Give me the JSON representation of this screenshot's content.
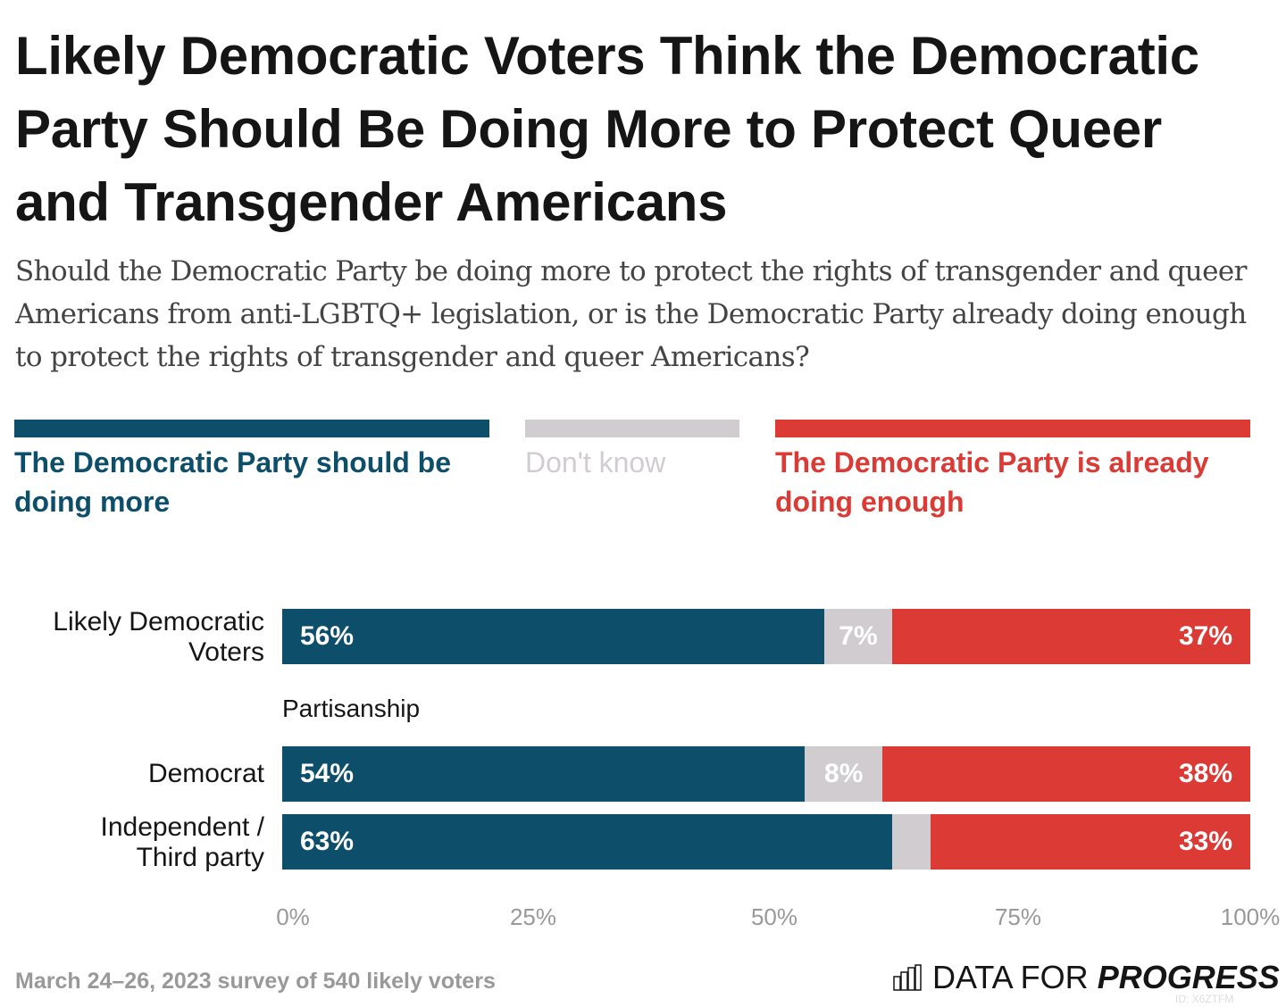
{
  "title": "Likely Democratic Voters Think the Democratic Party Should Be Doing More to Protect Queer and Transgender Americans",
  "subtitle": "Should the Democratic Party be doing more to protect the rights of transgender and queer Americans from anti-LGBTQ+ legislation, or is the Democratic Party already doing enough to protect the rights of transgender and queer Americans?",
  "colors": {
    "more": "#0d4e6b",
    "dontknow": "#d1ccd0",
    "enough": "#db3a35"
  },
  "chart_data": {
    "type": "bar",
    "orientation": "horizontal-stacked-100",
    "legend_position": "top",
    "series": [
      {
        "name": "The Democratic Party should be doing more",
        "values": [
          56,
          54,
          63
        ]
      },
      {
        "name": "Don't know",
        "values": [
          7,
          8,
          4
        ]
      },
      {
        "name": "The Democratic Party is already doing enough",
        "values": [
          37,
          38,
          33
        ]
      }
    ],
    "categories": [
      "Likely Democratic Voters",
      "Democrat",
      "Independent / Third party"
    ],
    "value_labels": [
      [
        "56%",
        "7%",
        "37%"
      ],
      [
        "54%",
        "8%",
        "38%"
      ],
      [
        "63%",
        "",
        "33%"
      ]
    ],
    "group_label": "Partisanship",
    "xlim": [
      0,
      100
    ],
    "xticks": [
      "0%",
      "25%",
      "50%",
      "75%",
      "100%"
    ]
  },
  "source": "March 24–26, 2023 survey of 540 likely voters",
  "logo": {
    "light": "DATA FOR ",
    "bold": "PROGRESS"
  },
  "id": "ID: X6ZTFM"
}
